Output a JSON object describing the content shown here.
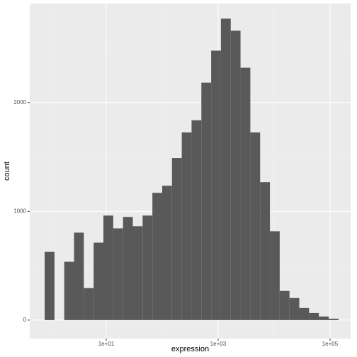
{
  "chart_data": {
    "type": "histogram",
    "x_label": "expression",
    "y_label": "count",
    "bins": [
      0.794,
      1.189,
      1.778,
      2.661,
      3.981,
      5.957,
      8.913,
      13.34,
      19.95,
      29.85,
      44.67,
      66.83,
      100,
      149.6,
      223.9,
      335.0,
      501.2,
      749.9,
      1122,
      1679,
      2512,
      3758,
      5623,
      8414,
      12589,
      18836,
      28184,
      42170,
      63096,
      94406,
      141254
    ],
    "values": [
      627,
      0,
      536,
      804,
      294,
      712,
      961,
      843,
      948,
      863,
      961,
      1170,
      1235,
      1490,
      1725,
      1837,
      2183,
      2477,
      2771,
      2660,
      2320,
      1725,
      1268,
      817,
      268,
      203,
      111,
      65,
      33,
      13
    ],
    "color": "#595959",
    "x_log": true,
    "xlim": [
      0.43,
      233000
    ],
    "xticks": [
      {
        "value": 10,
        "label": "1e+01"
      },
      {
        "value": 1000,
        "label": "1e+03"
      },
      {
        "value": 100000,
        "label": "1e+05"
      }
    ],
    "ylim": [
      -170,
      2910
    ],
    "yticks": [
      0,
      1000,
      2000
    ],
    "grid": true
  }
}
